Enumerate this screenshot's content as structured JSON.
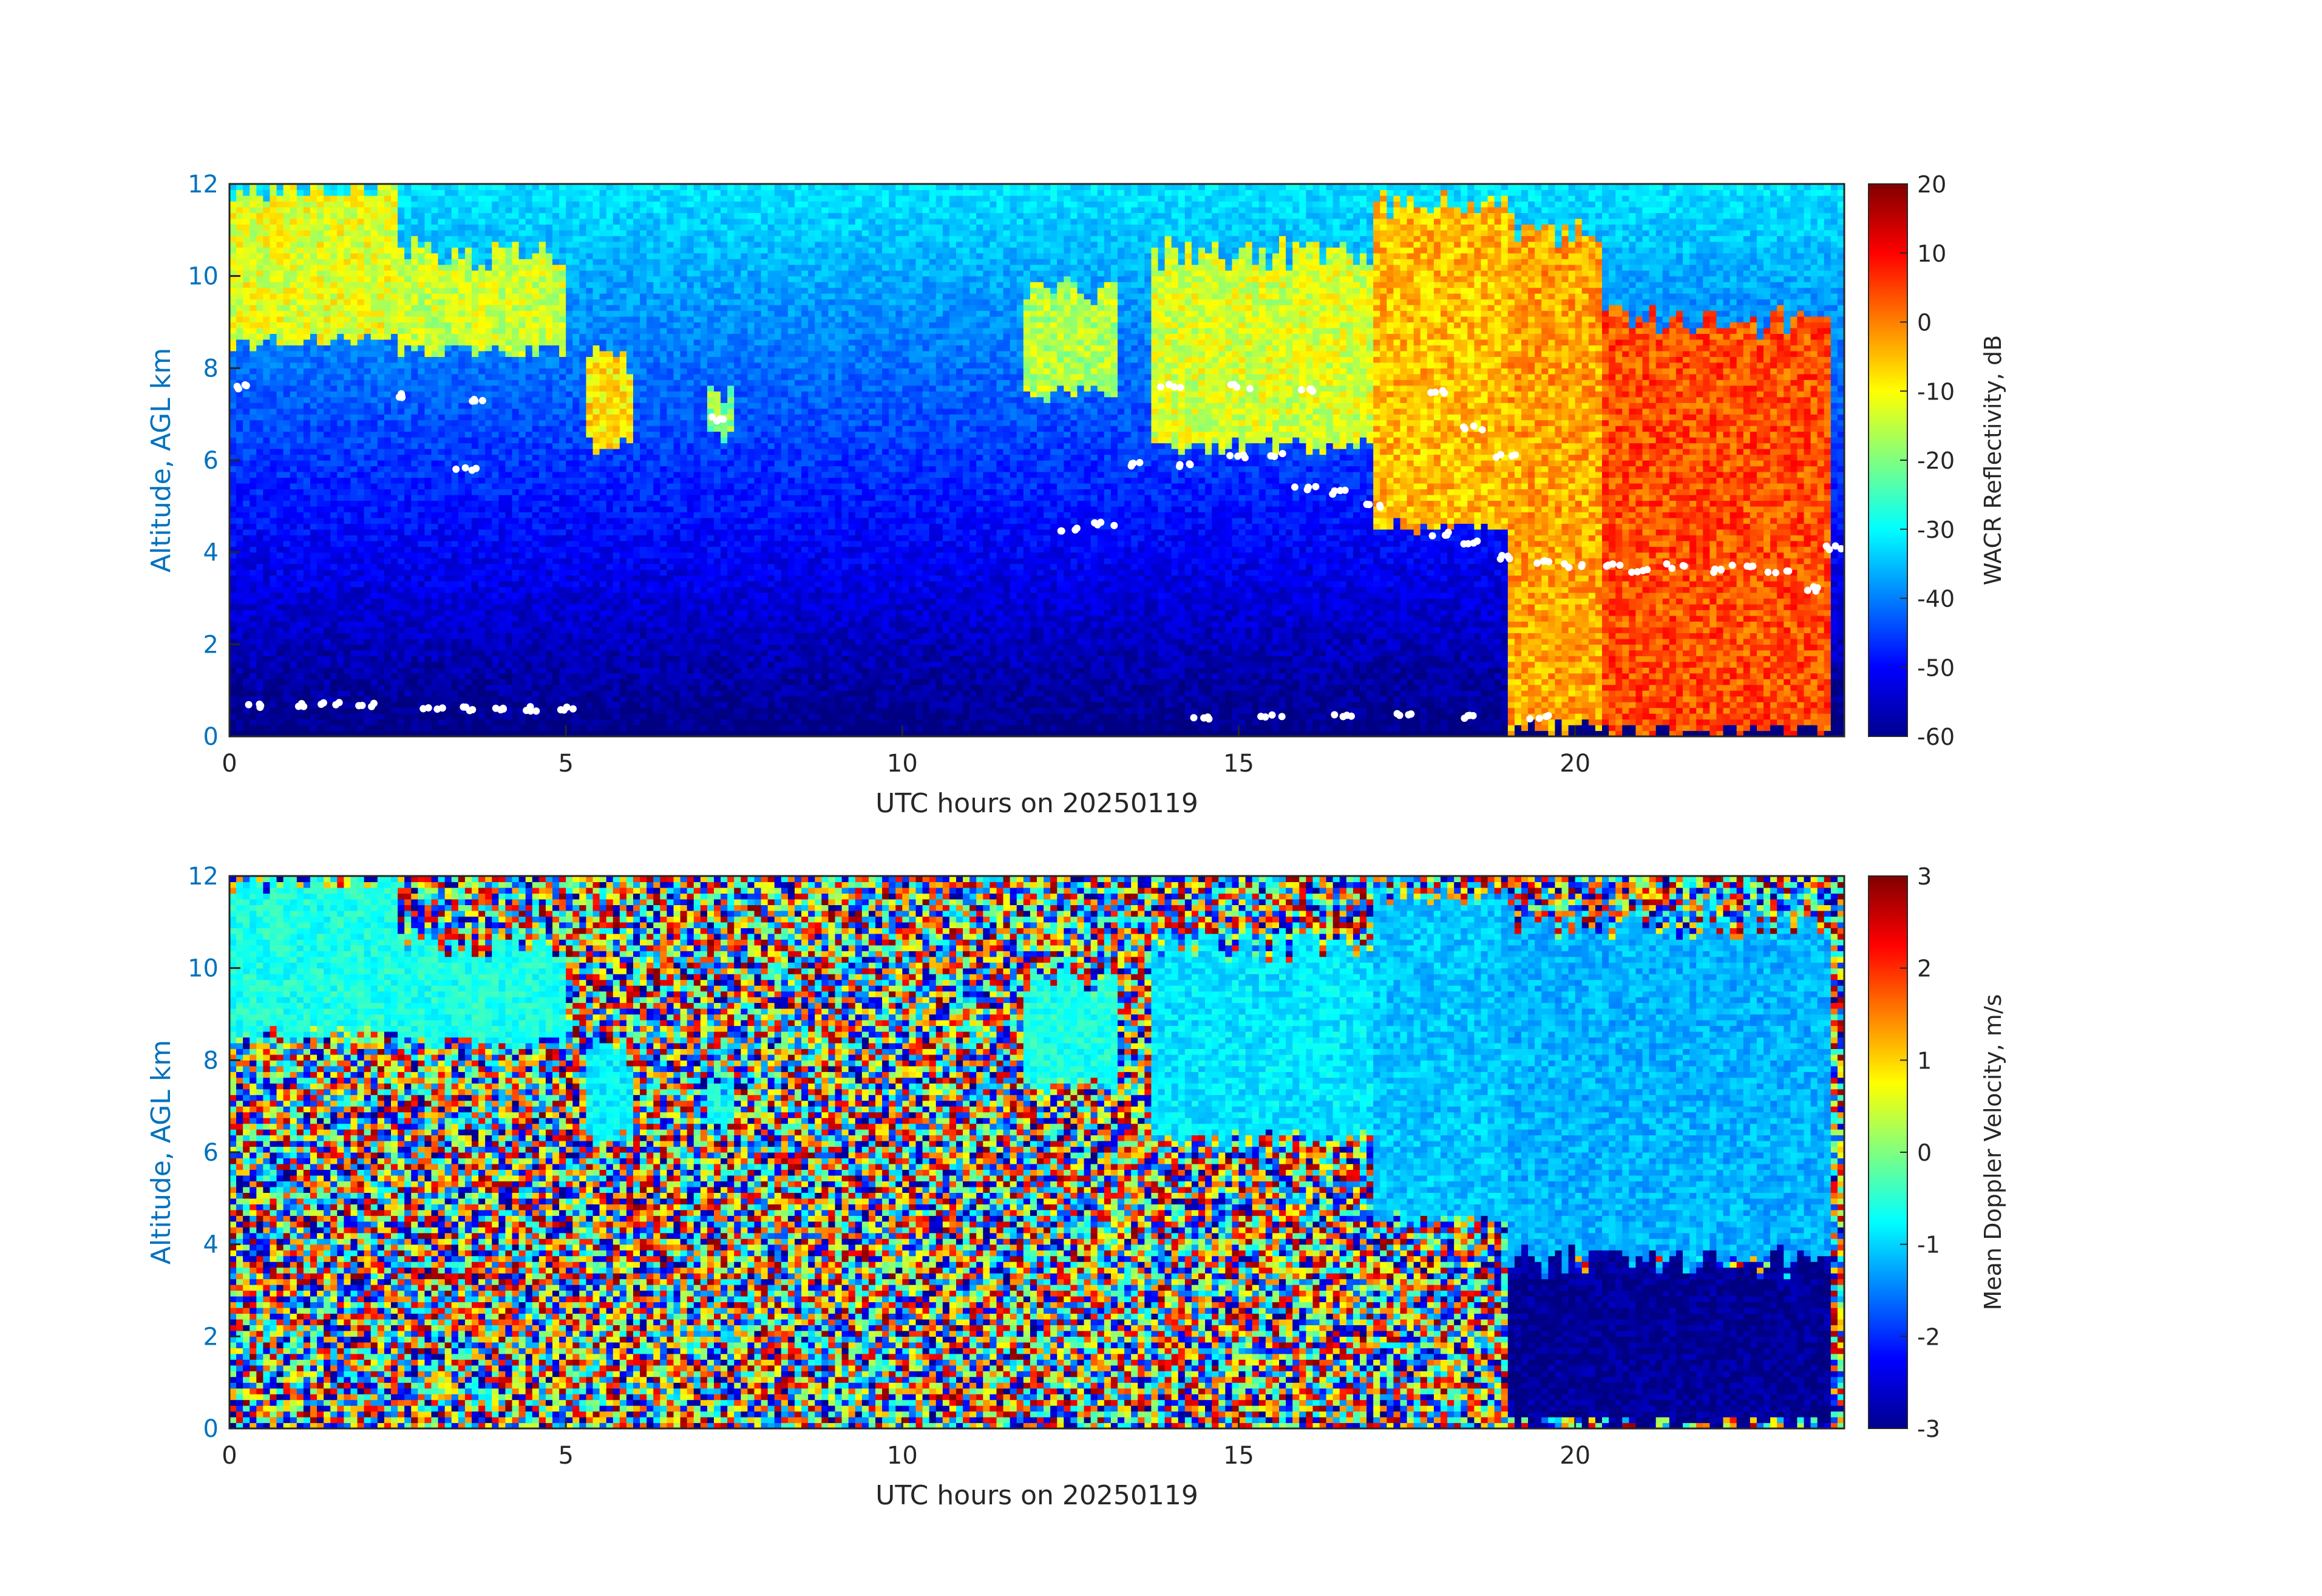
{
  "chart_data": [
    {
      "type": "heatmap",
      "title": "",
      "xlabel": "UTC hours on 20250119",
      "ylabel": "Altitude, AGL km",
      "xlim": [
        0,
        24
      ],
      "ylim": [
        0,
        12
      ],
      "x_ticks": [
        0,
        5,
        10,
        15,
        20
      ],
      "y_ticks": [
        0,
        2,
        4,
        6,
        8,
        10,
        12
      ],
      "colorbar": {
        "label": "WACR Reflectivity, dB",
        "range": [
          -60,
          20
        ],
        "ticks": [
          -60,
          -50,
          -40,
          -30,
          -20,
          -10,
          0,
          10,
          20
        ],
        "colormap": "jet"
      },
      "background_description": "noise floor increasing with altitude: about -60 dB at surface to about -32 dB at 12 km",
      "cloud_regions": [
        {
          "x": [
            0.0,
            2.5
          ],
          "ybase": 8.6,
          "ytop": 12.0,
          "value": -12
        },
        {
          "x": [
            2.5,
            5.0
          ],
          "ybase": 8.4,
          "ytop": 10.5,
          "value": -14
        },
        {
          "x": [
            5.3,
            6.0
          ],
          "ybase": 6.3,
          "ytop": 8.2,
          "value": -8
        },
        {
          "x": [
            7.1,
            7.5
          ],
          "ybase": 6.5,
          "ytop": 7.6,
          "value": -20
        },
        {
          "x": [
            11.8,
            13.2
          ],
          "ybase": 7.4,
          "ytop": 9.6,
          "value": -16
        },
        {
          "x": [
            13.7,
            17.0
          ],
          "ybase": 6.3,
          "ytop": 10.5,
          "value": -13
        },
        {
          "x": [
            17.0,
            19.0
          ],
          "ybase": 4.5,
          "ytop": 11.5,
          "value": -5
        },
        {
          "x": [
            19.0,
            20.4
          ],
          "ybase": 0.2,
          "ytop": 11.0,
          "value": -3
        },
        {
          "x": [
            20.4,
            23.8
          ],
          "ybase": 0.1,
          "ytop": 9.0,
          "value": 4
        }
      ],
      "cloud_base_points": [
        [
          0.4,
          0.65
        ],
        [
          1.0,
          0.68
        ],
        [
          1.5,
          0.7
        ],
        [
          2.0,
          0.68
        ],
        [
          3.0,
          0.62
        ],
        [
          3.5,
          0.6
        ],
        [
          4.0,
          0.62
        ],
        [
          4.5,
          0.6
        ],
        [
          5.0,
          0.6
        ],
        [
          14.5,
          0.4
        ],
        [
          15.5,
          0.42
        ],
        [
          16.5,
          0.44
        ],
        [
          17.5,
          0.45
        ],
        [
          18.5,
          0.42
        ],
        [
          19.5,
          0.4
        ],
        [
          0.2,
          7.6
        ],
        [
          2.5,
          7.4
        ],
        [
          3.7,
          7.3
        ],
        [
          3.5,
          5.8
        ],
        [
          7.3,
          6.9
        ],
        [
          12.5,
          4.5
        ],
        [
          13.0,
          4.6
        ],
        [
          13.5,
          5.9
        ],
        [
          14.2,
          5.9
        ],
        [
          15.0,
          6.1
        ],
        [
          15.5,
          6.1
        ],
        [
          14.0,
          7.6
        ],
        [
          15.0,
          7.6
        ],
        [
          16.0,
          7.5
        ],
        [
          16.0,
          5.4
        ],
        [
          16.5,
          5.3
        ],
        [
          17.0,
          5.0
        ],
        [
          18.0,
          4.4
        ],
        [
          18.5,
          4.2
        ],
        [
          19.0,
          3.9
        ],
        [
          19.5,
          3.8
        ],
        [
          20.0,
          3.7
        ],
        [
          20.5,
          3.7
        ],
        [
          21.0,
          3.6
        ],
        [
          21.5,
          3.7
        ],
        [
          22.0,
          3.6
        ],
        [
          22.5,
          3.7
        ],
        [
          23.0,
          3.6
        ],
        [
          23.5,
          3.2
        ],
        [
          23.9,
          4.1
        ],
        [
          18.0,
          7.5
        ],
        [
          18.5,
          6.7
        ],
        [
          19.0,
          6.1
        ]
      ]
    },
    {
      "type": "heatmap",
      "title": "",
      "xlabel": "UTC hours on 20250119",
      "ylabel": "Altitude, AGL km",
      "xlim": [
        0,
        24
      ],
      "ylim": [
        0,
        12
      ],
      "x_ticks": [
        0,
        5,
        10,
        15,
        20
      ],
      "y_ticks": [
        0,
        2,
        4,
        6,
        8,
        10,
        12
      ],
      "colorbar": {
        "label": "Mean Doppler Velocity, m/s",
        "range": [
          -3,
          3
        ],
        "ticks": [
          -3,
          -2,
          -1,
          0,
          1,
          2,
          3
        ],
        "colormap": "jet"
      },
      "background_description": "random noise spanning full velocity range outside cloud",
      "cloud_regions": [
        {
          "x": [
            0.0,
            2.5
          ],
          "ybase": 8.6,
          "ytop": 12.0,
          "value": -0.6
        },
        {
          "x": [
            2.5,
            5.0
          ],
          "ybase": 8.4,
          "ytop": 10.5,
          "value": -0.6
        },
        {
          "x": [
            5.3,
            6.0
          ],
          "ybase": 6.3,
          "ytop": 8.2,
          "value": -0.8
        },
        {
          "x": [
            7.1,
            7.5
          ],
          "ybase": 6.5,
          "ytop": 7.6,
          "value": -0.7
        },
        {
          "x": [
            11.8,
            13.2
          ],
          "ybase": 7.4,
          "ytop": 9.6,
          "value": -0.6
        },
        {
          "x": [
            13.7,
            17.0
          ],
          "ybase": 6.3,
          "ytop": 10.5,
          "value": -0.9
        },
        {
          "x": [
            17.0,
            19.0
          ],
          "ybase": 4.5,
          "ytop": 11.5,
          "value": -1.1
        },
        {
          "x": [
            19.0,
            23.8
          ],
          "ybase": 3.6,
          "ytop": 11.0,
          "value": -1.2
        },
        {
          "x": [
            19.0,
            23.8
          ],
          "ybase": 0.1,
          "ytop": 3.6,
          "value": -2.9
        }
      ]
    }
  ]
}
